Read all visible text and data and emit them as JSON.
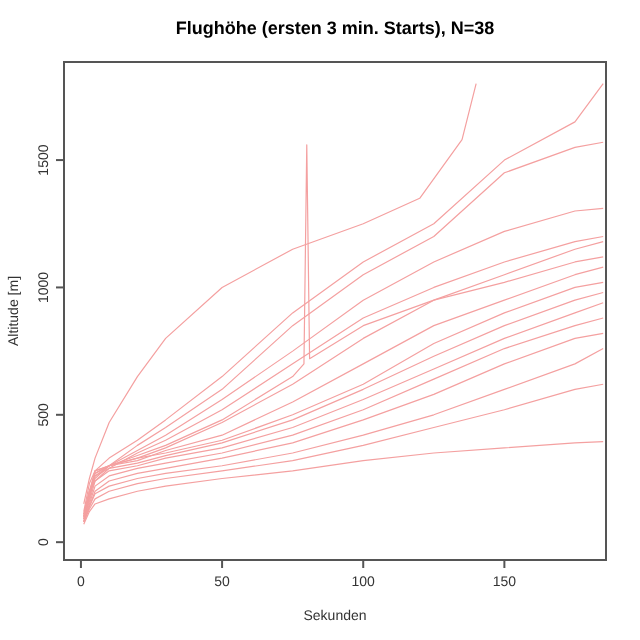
{
  "chart_data": {
    "type": "line",
    "title": "Flughöhe (ersten 3 min. Starts), N=38",
    "xlabel": "Sekunden",
    "ylabel": "Altitude [m]",
    "xlim": [
      -6,
      186
    ],
    "ylim": [
      -70,
      1885
    ],
    "xticks": [
      0,
      50,
      100,
      150
    ],
    "yticks": [
      0,
      500,
      1000,
      1500
    ],
    "grid": false,
    "line_style": "solid",
    "x": [
      1,
      3,
      5,
      10,
      20,
      30,
      50,
      75,
      100,
      125,
      150,
      175,
      185
    ],
    "series": [
      {
        "color": "#f4a0a0",
        "x": [
          1,
          3,
          5,
          10,
          20,
          30,
          50,
          75,
          100,
          120,
          135,
          140
        ],
        "values": [
          150,
          250,
          330,
          470,
          650,
          800,
          1000,
          1150,
          1250,
          1350,
          1580,
          1800
        ]
      },
      {
        "color": "#f4a0a0",
        "values": [
          120,
          230,
          280,
          330,
          400,
          480,
          650,
          900,
          1100,
          1250,
          1500,
          1650,
          1800
        ]
      },
      {
        "color": "#f4a0a0",
        "values": [
          110,
          200,
          250,
          300,
          380,
          450,
          600,
          850,
          1050,
          1200,
          1450,
          1550,
          1570
        ]
      },
      {
        "color": "#f4a0a0",
        "values": [
          110,
          200,
          260,
          300,
          360,
          420,
          560,
          750,
          950,
          1100,
          1220,
          1300,
          1310
        ]
      },
      {
        "color": "#f4a0a0",
        "values": [
          100,
          190,
          240,
          290,
          350,
          400,
          520,
          700,
          880,
          1000,
          1100,
          1180,
          1200
        ]
      },
      {
        "color": "#f4a0a0",
        "values": [
          100,
          180,
          270,
          300,
          330,
          370,
          470,
          620,
          800,
          950,
          1050,
          1150,
          1180
        ]
      },
      {
        "color": "#f4a0a0",
        "x": [
          1,
          3,
          5,
          10,
          20,
          30,
          50,
          75,
          79,
          80,
          81,
          100,
          125,
          150,
          175,
          185
        ],
        "values": [
          100,
          200,
          280,
          300,
          340,
          380,
          480,
          650,
          700,
          1560,
          720,
          850,
          950,
          1020,
          1100,
          1120
        ]
      },
      {
        "color": "#f4a0a0",
        "values": [
          100,
          190,
          280,
          300,
          320,
          360,
          420,
          550,
          700,
          850,
          950,
          1050,
          1080
        ]
      },
      {
        "color": "#f4a0a0",
        "values": [
          90,
          180,
          270,
          300,
          330,
          350,
          400,
          500,
          620,
          780,
          900,
          1000,
          1020
        ]
      },
      {
        "color": "#f4a0a0",
        "values": [
          90,
          170,
          260,
          290,
          310,
          340,
          390,
          480,
          600,
          730,
          850,
          950,
          980
        ]
      },
      {
        "color": "#f4a0a0",
        "values": [
          90,
          160,
          240,
          280,
          300,
          330,
          370,
          450,
          560,
          680,
          800,
          900,
          940
        ]
      },
      {
        "color": "#f4a0a0",
        "values": [
          80,
          150,
          220,
          260,
          290,
          310,
          350,
          420,
          520,
          640,
          760,
          850,
          880
        ]
      },
      {
        "color": "#f4a0a0",
        "values": [
          80,
          140,
          200,
          240,
          270,
          290,
          330,
          390,
          480,
          580,
          700,
          800,
          820
        ]
      },
      {
        "color": "#f4a0a0",
        "values": [
          80,
          140,
          190,
          220,
          250,
          270,
          300,
          350,
          420,
          500,
          600,
          700,
          760
        ]
      },
      {
        "color": "#f4a0a0",
        "values": [
          80,
          130,
          170,
          200,
          230,
          250,
          280,
          320,
          380,
          450,
          520,
          600,
          620
        ]
      },
      {
        "color": "#f4a0a0",
        "values": [
          70,
          120,
          150,
          170,
          200,
          220,
          250,
          280,
          320,
          350,
          370,
          390,
          395
        ]
      }
    ]
  }
}
